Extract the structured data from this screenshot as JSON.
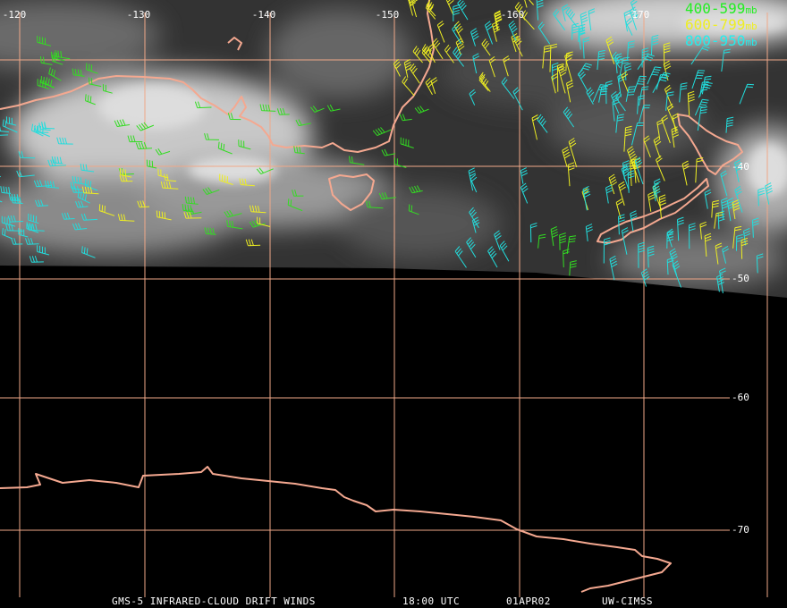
{
  "map": {
    "longitude_labels": [
      "-120",
      "-130",
      "-140",
      "-150",
      "-160",
      "-170"
    ],
    "latitude_labels": [
      "-40",
      "-50",
      "-60",
      "-70"
    ],
    "legend": [
      {
        "range": "400-599",
        "unit": "mb"
      },
      {
        "range": "600-799",
        "unit": "mb"
      },
      {
        "range": "800-950",
        "unit": "mb"
      }
    ],
    "caption": [
      "GMS-5 INFRARED-CLOUD DRIFT WINDS",
      "18:00 UTC",
      "01APR02",
      "UW-CIMSS"
    ]
  }
}
